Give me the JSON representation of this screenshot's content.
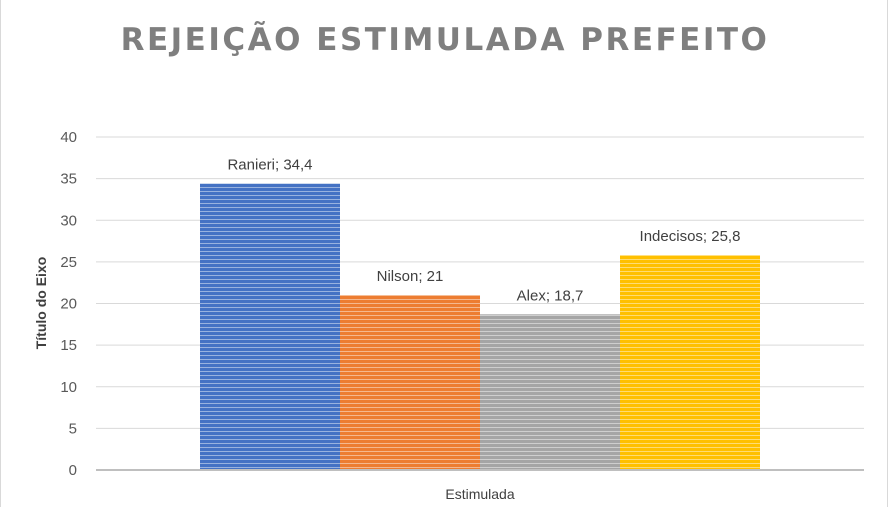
{
  "chart_data": {
    "type": "bar",
    "title": "REJEIÇÃO ESTIMULADA PREFEITO",
    "ylabel": "Título do Eixo",
    "xlabel": "",
    "categories": [
      "Estimulada"
    ],
    "ylim": [
      0,
      40
    ],
    "yticks": [
      "0",
      "5",
      "10",
      "15",
      "20",
      "25",
      "30",
      "35",
      "40"
    ],
    "grid": true,
    "legend": "none",
    "series": [
      {
        "name": "Ranieri",
        "values": [
          34.4
        ],
        "label": "Ranieri; 34,4",
        "color": "#4472c4"
      },
      {
        "name": "Nilson",
        "values": [
          21
        ],
        "label": "Nilson; 21",
        "color": "#ed7d31"
      },
      {
        "name": "Alex",
        "values": [
          18.7
        ],
        "label": "Alex; 18,7",
        "color": "#a5a5a5"
      },
      {
        "name": "Indecisos",
        "values": [
          25.8
        ],
        "label": "Indecisos; 25,8",
        "color": "#ffc000"
      }
    ]
  }
}
